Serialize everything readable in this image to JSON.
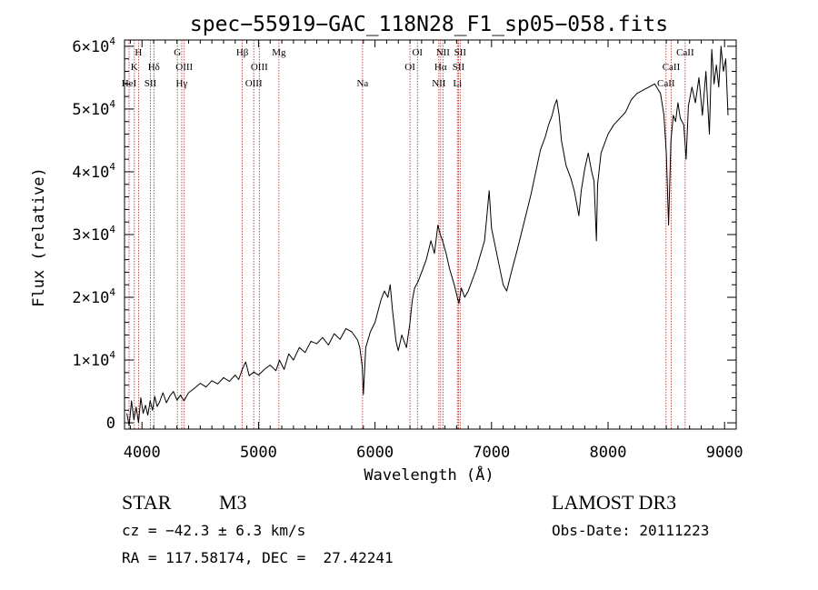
{
  "chart_data": {
    "type": "line",
    "title": "spec−55919−GAC_118N28_F1_sp05−058.fits",
    "xlabel": "Wavelength (Å)",
    "ylabel": "Flux (relative)",
    "xlim": [
      3850,
      9100
    ],
    "ylim": [
      -1000,
      61000
    ],
    "x_ticks": [
      {
        "value": 4000,
        "label": "4000"
      },
      {
        "value": 5000,
        "label": "5000"
      },
      {
        "value": 6000,
        "label": "6000"
      },
      {
        "value": 7000,
        "label": "7000"
      },
      {
        "value": 8000,
        "label": "8000"
      },
      {
        "value": 9000,
        "label": "9000"
      }
    ],
    "y_ticks": [
      {
        "value": 0,
        "mantissa": "0",
        "exp": ""
      },
      {
        "value": 10000,
        "mantissa": "1×10",
        "exp": "4"
      },
      {
        "value": 20000,
        "mantissa": "2×10",
        "exp": "4"
      },
      {
        "value": 30000,
        "mantissa": "3×10",
        "exp": "4"
      },
      {
        "value": 40000,
        "mantissa": "4×10",
        "exp": "4"
      },
      {
        "value": 50000,
        "mantissa": "5×10",
        "exp": "4"
      },
      {
        "value": 60000,
        "mantissa": "6×10",
        "exp": "4"
      }
    ],
    "series": [
      {
        "name": "flux",
        "color": "#000000",
        "points": [
          [
            3870,
            1500
          ],
          [
            3890,
            -500
          ],
          [
            3910,
            3500
          ],
          [
            3930,
            500
          ],
          [
            3950,
            2500
          ],
          [
            3970,
            0
          ],
          [
            3990,
            4000
          ],
          [
            4010,
            1500
          ],
          [
            4030,
            2800
          ],
          [
            4050,
            1200
          ],
          [
            4070,
            3500
          ],
          [
            4090,
            2000
          ],
          [
            4110,
            4200
          ],
          [
            4130,
            2600
          ],
          [
            4150,
            3300
          ],
          [
            4180,
            4800
          ],
          [
            4210,
            3200
          ],
          [
            4240,
            4300
          ],
          [
            4270,
            5000
          ],
          [
            4300,
            3600
          ],
          [
            4330,
            4400
          ],
          [
            4360,
            3500
          ],
          [
            4400,
            4800
          ],
          [
            4450,
            5500
          ],
          [
            4500,
            6300
          ],
          [
            4550,
            5700
          ],
          [
            4600,
            6700
          ],
          [
            4650,
            6200
          ],
          [
            4700,
            7200
          ],
          [
            4750,
            6600
          ],
          [
            4800,
            7600
          ],
          [
            4830,
            6900
          ],
          [
            4860,
            8500
          ],
          [
            4890,
            9700
          ],
          [
            4920,
            7500
          ],
          [
            4960,
            8100
          ],
          [
            5000,
            7600
          ],
          [
            5050,
            8500
          ],
          [
            5100,
            9200
          ],
          [
            5150,
            8300
          ],
          [
            5180,
            10000
          ],
          [
            5220,
            8500
          ],
          [
            5260,
            11000
          ],
          [
            5300,
            10000
          ],
          [
            5350,
            12000
          ],
          [
            5400,
            11200
          ],
          [
            5450,
            13000
          ],
          [
            5500,
            12600
          ],
          [
            5550,
            13600
          ],
          [
            5600,
            12400
          ],
          [
            5650,
            14200
          ],
          [
            5700,
            13300
          ],
          [
            5750,
            15000
          ],
          [
            5800,
            14500
          ],
          [
            5850,
            13200
          ],
          [
            5870,
            12000
          ],
          [
            5890,
            9000
          ],
          [
            5900,
            4500
          ],
          [
            5920,
            12000
          ],
          [
            5960,
            14500
          ],
          [
            6000,
            16000
          ],
          [
            6050,
            19500
          ],
          [
            6080,
            21000
          ],
          [
            6110,
            20000
          ],
          [
            6130,
            22000
          ],
          [
            6150,
            18000
          ],
          [
            6180,
            13000
          ],
          [
            6200,
            11500
          ],
          [
            6230,
            14000
          ],
          [
            6270,
            12000
          ],
          [
            6300,
            16000
          ],
          [
            6320,
            19500
          ],
          [
            6340,
            21500
          ],
          [
            6370,
            22500
          ],
          [
            6400,
            24000
          ],
          [
            6440,
            26000
          ],
          [
            6480,
            29000
          ],
          [
            6510,
            27000
          ],
          [
            6540,
            31500
          ],
          [
            6560,
            30000
          ],
          [
            6580,
            29000
          ],
          [
            6610,
            27000
          ],
          [
            6640,
            24500
          ],
          [
            6680,
            22000
          ],
          [
            6700,
            20500
          ],
          [
            6720,
            19000
          ],
          [
            6740,
            21500
          ],
          [
            6770,
            20000
          ],
          [
            6800,
            21000
          ],
          [
            6830,
            22500
          ],
          [
            6870,
            24500
          ],
          [
            6900,
            26500
          ],
          [
            6940,
            29000
          ],
          [
            6960,
            33000
          ],
          [
            6980,
            37000
          ],
          [
            7000,
            31000
          ],
          [
            7050,
            26500
          ],
          [
            7100,
            22000
          ],
          [
            7130,
            21000
          ],
          [
            7170,
            24000
          ],
          [
            7220,
            27500
          ],
          [
            7280,
            32000
          ],
          [
            7340,
            36500
          ],
          [
            7380,
            40000
          ],
          [
            7420,
            43500
          ],
          [
            7460,
            45500
          ],
          [
            7490,
            47500
          ],
          [
            7520,
            49000
          ],
          [
            7540,
            50500
          ],
          [
            7560,
            51500
          ],
          [
            7580,
            49000
          ],
          [
            7600,
            45000
          ],
          [
            7640,
            41000
          ],
          [
            7680,
            39000
          ],
          [
            7710,
            37000
          ],
          [
            7730,
            35000
          ],
          [
            7750,
            33000
          ],
          [
            7770,
            37000
          ],
          [
            7800,
            40500
          ],
          [
            7830,
            43000
          ],
          [
            7860,
            40000
          ],
          [
            7880,
            38500
          ],
          [
            7900,
            29000
          ],
          [
            7910,
            38000
          ],
          [
            7940,
            43000
          ],
          [
            8000,
            46000
          ],
          [
            8050,
            47500
          ],
          [
            8100,
            48500
          ],
          [
            8150,
            49500
          ],
          [
            8200,
            51500
          ],
          [
            8250,
            52500
          ],
          [
            8300,
            53000
          ],
          [
            8350,
            53500
          ],
          [
            8400,
            54000
          ],
          [
            8450,
            52500
          ],
          [
            8480,
            49000
          ],
          [
            8500,
            43000
          ],
          [
            8520,
            31500
          ],
          [
            8540,
            45000
          ],
          [
            8560,
            49000
          ],
          [
            8580,
            48000
          ],
          [
            8600,
            51000
          ],
          [
            8620,
            48500
          ],
          [
            8650,
            47500
          ],
          [
            8670,
            42000
          ],
          [
            8690,
            50500
          ],
          [
            8720,
            53500
          ],
          [
            8750,
            51000
          ],
          [
            8780,
            55000
          ],
          [
            8810,
            49000
          ],
          [
            8840,
            56000
          ],
          [
            8870,
            46000
          ],
          [
            8890,
            59500
          ],
          [
            8910,
            54000
          ],
          [
            8930,
            57000
          ],
          [
            8950,
            53500
          ],
          [
            8970,
            60000
          ],
          [
            8990,
            56000
          ],
          [
            9010,
            58000
          ],
          [
            9030,
            49000
          ]
        ]
      }
    ],
    "lines": [
      {
        "lambda": 3889,
        "label": "HeI",
        "row": 3
      },
      {
        "lambda": 3934,
        "label": "K",
        "row": 2
      },
      {
        "lambda": 3970,
        "label": "H",
        "row": 1
      },
      {
        "lambda": 4072,
        "label": "SII",
        "row": 3
      },
      {
        "lambda": 4102,
        "label": "Hδ",
        "row": 2
      },
      {
        "lambda": 4304,
        "label": "G",
        "row": 1
      },
      {
        "lambda": 4341,
        "label": "Hγ",
        "row": 3
      },
      {
        "lambda": 4363,
        "label": "OIII",
        "row": 2
      },
      {
        "lambda": 4861,
        "label": "Hβ",
        "row": 1
      },
      {
        "lambda": 4959,
        "label": "OIII",
        "row": 3
      },
      {
        "lambda": 5007,
        "label": "OIII",
        "row": 2
      },
      {
        "lambda": 5175,
        "label": "Mg",
        "row": 1
      },
      {
        "lambda": 5893,
        "label": "Na",
        "row": 3
      },
      {
        "lambda": 6300,
        "label": "OI",
        "row": 2
      },
      {
        "lambda": 6364,
        "label": "OI",
        "row": 1
      },
      {
        "lambda": 6548,
        "label": "NII",
        "row": 3
      },
      {
        "lambda": 6563,
        "label": "Hα",
        "row": 2
      },
      {
        "lambda": 6583,
        "label": "NII",
        "row": 1
      },
      {
        "lambda": 6707,
        "label": "Li",
        "row": 3
      },
      {
        "lambda": 6717,
        "label": "SII",
        "row": 2
      },
      {
        "lambda": 6731,
        "label": "SII",
        "row": 1
      },
      {
        "lambda": 8498,
        "label": "CaII",
        "row": 3
      },
      {
        "lambda": 8542,
        "label": "CaII",
        "row": 2
      },
      {
        "lambda": 8662,
        "label": "CaII",
        "row": 1
      }
    ]
  },
  "info": {
    "class_label": "STAR",
    "subclass": "M3",
    "survey": "LAMOST DR3",
    "cz_text": "cz = −42.3 ± 6.3 km/s",
    "obs_date": "Obs-Date: 20111223",
    "radec": "RA = 117.58174, DEC =  27.42241"
  },
  "colors": {
    "axis": "#000000",
    "spectrum": "#000000",
    "line_marker": "#b22222"
  }
}
